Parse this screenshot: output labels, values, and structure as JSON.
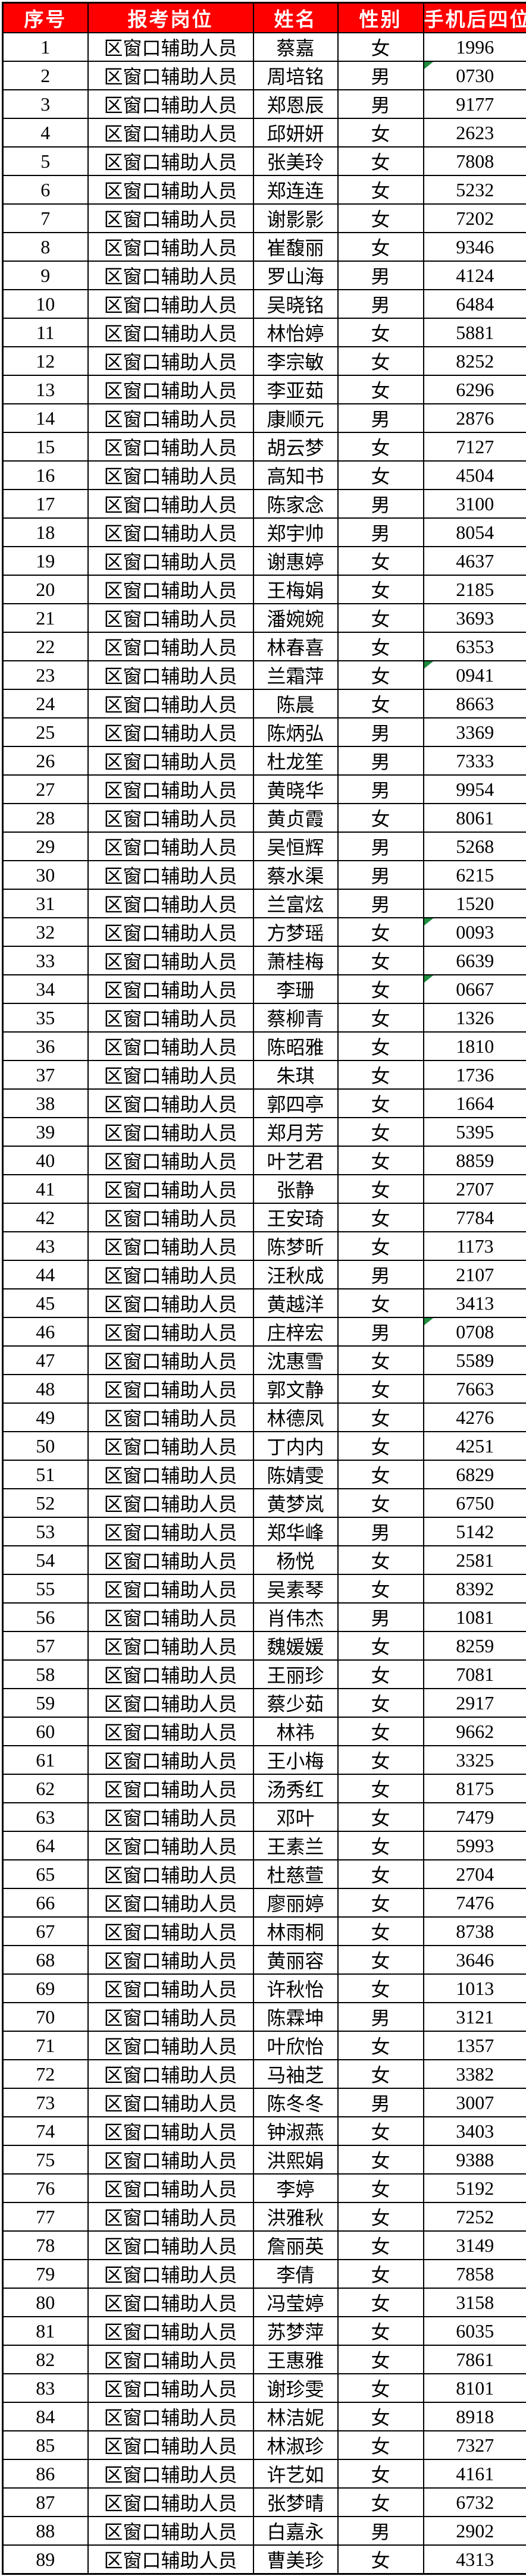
{
  "colors": {
    "header_bg": "#FF0000",
    "header_text": "#FFFFFF",
    "border": "#000000",
    "indicator_green": "#1E8E3E"
  },
  "icons": {
    "phone_flag": "green-corner-triangle"
  },
  "table": {
    "columns": [
      "序号",
      "报考岗位",
      "姓名",
      "性别",
      "手机后四位"
    ],
    "position_value": "区窗口辅助人员",
    "rows": [
      {
        "no": "1",
        "name": "蔡嘉",
        "gender": "女",
        "phone": "1996"
      },
      {
        "no": "2",
        "name": "周培铭",
        "gender": "男",
        "phone": "0730",
        "flag": true
      },
      {
        "no": "3",
        "name": "郑恩辰",
        "gender": "男",
        "phone": "9177"
      },
      {
        "no": "4",
        "name": "邱妍妍",
        "gender": "女",
        "phone": "2623"
      },
      {
        "no": "5",
        "name": "张美玲",
        "gender": "女",
        "phone": "7808"
      },
      {
        "no": "6",
        "name": "郑连连",
        "gender": "女",
        "phone": "5232"
      },
      {
        "no": "7",
        "name": "谢影影",
        "gender": "女",
        "phone": "7202"
      },
      {
        "no": "8",
        "name": "崔馥丽",
        "gender": "女",
        "phone": "9346"
      },
      {
        "no": "9",
        "name": "罗山海",
        "gender": "男",
        "phone": "4124"
      },
      {
        "no": "10",
        "name": "吴晓铭",
        "gender": "男",
        "phone": "6484"
      },
      {
        "no": "11",
        "name": "林怡婷",
        "gender": "女",
        "phone": "5881"
      },
      {
        "no": "12",
        "name": "李宗敏",
        "gender": "女",
        "phone": "8252"
      },
      {
        "no": "13",
        "name": "李亚茹",
        "gender": "女",
        "phone": "6296"
      },
      {
        "no": "14",
        "name": "康顺元",
        "gender": "男",
        "phone": "2876"
      },
      {
        "no": "15",
        "name": "胡云梦",
        "gender": "女",
        "phone": "7127"
      },
      {
        "no": "16",
        "name": "高知书",
        "gender": "女",
        "phone": "4504"
      },
      {
        "no": "17",
        "name": "陈家念",
        "gender": "男",
        "phone": "3100"
      },
      {
        "no": "18",
        "name": "郑宇帅",
        "gender": "男",
        "phone": "8054"
      },
      {
        "no": "19",
        "name": "谢惠婷",
        "gender": "女",
        "phone": "4637"
      },
      {
        "no": "20",
        "name": "王梅娟",
        "gender": "女",
        "phone": "2185"
      },
      {
        "no": "21",
        "name": "潘婉婉",
        "gender": "女",
        "phone": "3693"
      },
      {
        "no": "22",
        "name": "林春喜",
        "gender": "女",
        "phone": "6353"
      },
      {
        "no": "23",
        "name": "兰霜萍",
        "gender": "女",
        "phone": "0941",
        "flag": true
      },
      {
        "no": "24",
        "name": "陈晨",
        "gender": "女",
        "phone": "8663"
      },
      {
        "no": "25",
        "name": "陈炳弘",
        "gender": "男",
        "phone": "3369"
      },
      {
        "no": "26",
        "name": "杜龙笙",
        "gender": "男",
        "phone": "7333"
      },
      {
        "no": "27",
        "name": "黄晓华",
        "gender": "男",
        "phone": "9954"
      },
      {
        "no": "28",
        "name": "黄贞霞",
        "gender": "女",
        "phone": "8061"
      },
      {
        "no": "29",
        "name": "吴恒辉",
        "gender": "男",
        "phone": "5268"
      },
      {
        "no": "30",
        "name": "蔡水渠",
        "gender": "男",
        "phone": "6215"
      },
      {
        "no": "31",
        "name": "兰富炫",
        "gender": "男",
        "phone": "1520"
      },
      {
        "no": "32",
        "name": "方梦瑶",
        "gender": "女",
        "phone": "0093",
        "flag": true
      },
      {
        "no": "33",
        "name": "萧桂梅",
        "gender": "女",
        "phone": "6639"
      },
      {
        "no": "34",
        "name": "李珊",
        "gender": "女",
        "phone": "0667",
        "flag": true
      },
      {
        "no": "35",
        "name": "蔡柳青",
        "gender": "女",
        "phone": "1326"
      },
      {
        "no": "36",
        "name": "陈昭雅",
        "gender": "女",
        "phone": "1810"
      },
      {
        "no": "37",
        "name": "朱琪",
        "gender": "女",
        "phone": "1736"
      },
      {
        "no": "38",
        "name": "郭四亭",
        "gender": "女",
        "phone": "1664"
      },
      {
        "no": "39",
        "name": "郑月芳",
        "gender": "女",
        "phone": "5395"
      },
      {
        "no": "40",
        "name": "叶艺君",
        "gender": "女",
        "phone": "8859"
      },
      {
        "no": "41",
        "name": "张静",
        "gender": "女",
        "phone": "2707"
      },
      {
        "no": "42",
        "name": "王安琦",
        "gender": "女",
        "phone": "7784"
      },
      {
        "no": "43",
        "name": "陈梦昕",
        "gender": "女",
        "phone": "1173"
      },
      {
        "no": "44",
        "name": "汪秋成",
        "gender": "男",
        "phone": "2107"
      },
      {
        "no": "45",
        "name": "黄越洋",
        "gender": "女",
        "phone": "3413"
      },
      {
        "no": "46",
        "name": "庄梓宏",
        "gender": "男",
        "phone": "0708",
        "flag": true
      },
      {
        "no": "47",
        "name": "沈惠雪",
        "gender": "女",
        "phone": "5589"
      },
      {
        "no": "48",
        "name": "郭文静",
        "gender": "女",
        "phone": "7663"
      },
      {
        "no": "49",
        "name": "林德凤",
        "gender": "女",
        "phone": "4276"
      },
      {
        "no": "50",
        "name": "丁内内",
        "gender": "女",
        "phone": "4251"
      },
      {
        "no": "51",
        "name": "陈婧雯",
        "gender": "女",
        "phone": "6829"
      },
      {
        "no": "52",
        "name": "黄梦岚",
        "gender": "女",
        "phone": "6750"
      },
      {
        "no": "53",
        "name": "郑华峰",
        "gender": "男",
        "phone": "5142"
      },
      {
        "no": "54",
        "name": "杨悦",
        "gender": "女",
        "phone": "2581"
      },
      {
        "no": "55",
        "name": "吴素琴",
        "gender": "女",
        "phone": "8392"
      },
      {
        "no": "56",
        "name": "肖伟杰",
        "gender": "男",
        "phone": "1081"
      },
      {
        "no": "57",
        "name": "魏媛媛",
        "gender": "女",
        "phone": "8259"
      },
      {
        "no": "58",
        "name": "王丽珍",
        "gender": "女",
        "phone": "7081"
      },
      {
        "no": "59",
        "name": "蔡少茹",
        "gender": "女",
        "phone": "2917"
      },
      {
        "no": "60",
        "name": "林祎",
        "gender": "女",
        "phone": "9662"
      },
      {
        "no": "61",
        "name": "王小梅",
        "gender": "女",
        "phone": "3325"
      },
      {
        "no": "62",
        "name": "汤秀红",
        "gender": "女",
        "phone": "8175"
      },
      {
        "no": "63",
        "name": "邓叶",
        "gender": "女",
        "phone": "7479"
      },
      {
        "no": "64",
        "name": "王素兰",
        "gender": "女",
        "phone": "5993"
      },
      {
        "no": "65",
        "name": "杜慈萱",
        "gender": "女",
        "phone": "2704"
      },
      {
        "no": "66",
        "name": "廖丽婷",
        "gender": "女",
        "phone": "7476"
      },
      {
        "no": "67",
        "name": "林雨桐",
        "gender": "女",
        "phone": "8738"
      },
      {
        "no": "68",
        "name": "黄丽容",
        "gender": "女",
        "phone": "3646"
      },
      {
        "no": "69",
        "name": "许秋怡",
        "gender": "女",
        "phone": "1013"
      },
      {
        "no": "70",
        "name": "陈霖坤",
        "gender": "男",
        "phone": "3121"
      },
      {
        "no": "71",
        "name": "叶欣怡",
        "gender": "女",
        "phone": "1357"
      },
      {
        "no": "72",
        "name": "马袖芝",
        "gender": "女",
        "phone": "3382"
      },
      {
        "no": "73",
        "name": "陈冬冬",
        "gender": "男",
        "phone": "3007"
      },
      {
        "no": "74",
        "name": "钟淑燕",
        "gender": "女",
        "phone": "3403"
      },
      {
        "no": "75",
        "name": "洪熙娟",
        "gender": "女",
        "phone": "9388"
      },
      {
        "no": "76",
        "name": "李婷",
        "gender": "女",
        "phone": "5192"
      },
      {
        "no": "77",
        "name": "洪雅秋",
        "gender": "女",
        "phone": "7252"
      },
      {
        "no": "78",
        "name": "詹丽英",
        "gender": "女",
        "phone": "3149"
      },
      {
        "no": "79",
        "name": "李倩",
        "gender": "女",
        "phone": "7858"
      },
      {
        "no": "80",
        "name": "冯莹婷",
        "gender": "女",
        "phone": "3158"
      },
      {
        "no": "81",
        "name": "苏梦萍",
        "gender": "女",
        "phone": "6035"
      },
      {
        "no": "82",
        "name": "王惠雅",
        "gender": "女",
        "phone": "7861"
      },
      {
        "no": "83",
        "name": "谢珍雯",
        "gender": "女",
        "phone": "8101"
      },
      {
        "no": "84",
        "name": "林洁妮",
        "gender": "女",
        "phone": "8918"
      },
      {
        "no": "85",
        "name": "林淑珍",
        "gender": "女",
        "phone": "7327"
      },
      {
        "no": "86",
        "name": "许艺如",
        "gender": "女",
        "phone": "4161"
      },
      {
        "no": "87",
        "name": "张梦晴",
        "gender": "女",
        "phone": "6732"
      },
      {
        "no": "88",
        "name": "白嘉永",
        "gender": "男",
        "phone": "2902"
      },
      {
        "no": "89",
        "name": "曹美珍",
        "gender": "女",
        "phone": "4313"
      }
    ]
  }
}
